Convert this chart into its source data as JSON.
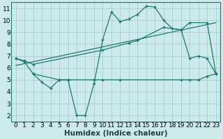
{
  "xlabel": "Humidex (Indice chaleur)",
  "xlim": [
    -0.5,
    23.5
  ],
  "ylim": [
    1.5,
    11.5
  ],
  "yticks": [
    2,
    3,
    4,
    5,
    6,
    7,
    8,
    9,
    10,
    11
  ],
  "xticks": [
    0,
    1,
    2,
    3,
    4,
    5,
    6,
    7,
    8,
    9,
    10,
    11,
    12,
    13,
    14,
    15,
    16,
    17,
    18,
    19,
    20,
    21,
    22,
    23
  ],
  "bg_color": "#cceaea",
  "grid_color": "#aacccc",
  "line_color": "#1a7a6e",
  "series1_x": [
    0,
    1,
    2,
    3,
    4,
    5,
    6,
    7,
    8,
    9,
    10,
    11,
    12,
    13,
    14,
    15,
    16,
    17,
    18,
    19,
    20,
    21,
    22,
    23
  ],
  "series1_y": [
    6.8,
    6.5,
    5.5,
    4.8,
    4.3,
    5.0,
    5.0,
    2.0,
    2.0,
    4.7,
    8.4,
    10.7,
    9.9,
    10.1,
    10.5,
    11.2,
    11.1,
    10.0,
    9.3,
    9.2,
    6.8,
    7.0,
    6.8,
    5.5
  ],
  "series2_x": [
    0,
    1,
    2,
    10,
    13,
    14,
    17,
    19,
    20,
    22,
    23
  ],
  "series2_y": [
    6.8,
    6.6,
    6.3,
    7.5,
    8.1,
    8.3,
    9.4,
    9.2,
    9.8,
    9.8,
    5.5
  ],
  "series3_x": [
    0,
    23
  ],
  "series3_y": [
    6.2,
    9.8
  ],
  "series4_x": [
    2,
    5,
    6,
    9,
    10,
    12,
    19,
    20,
    21,
    22,
    23
  ],
  "series4_y": [
    5.5,
    5.0,
    5.0,
    5.0,
    5.0,
    5.0,
    5.0,
    5.0,
    5.0,
    5.3,
    5.5
  ],
  "tick_fontsize": 6.5,
  "label_fontsize": 7.5
}
